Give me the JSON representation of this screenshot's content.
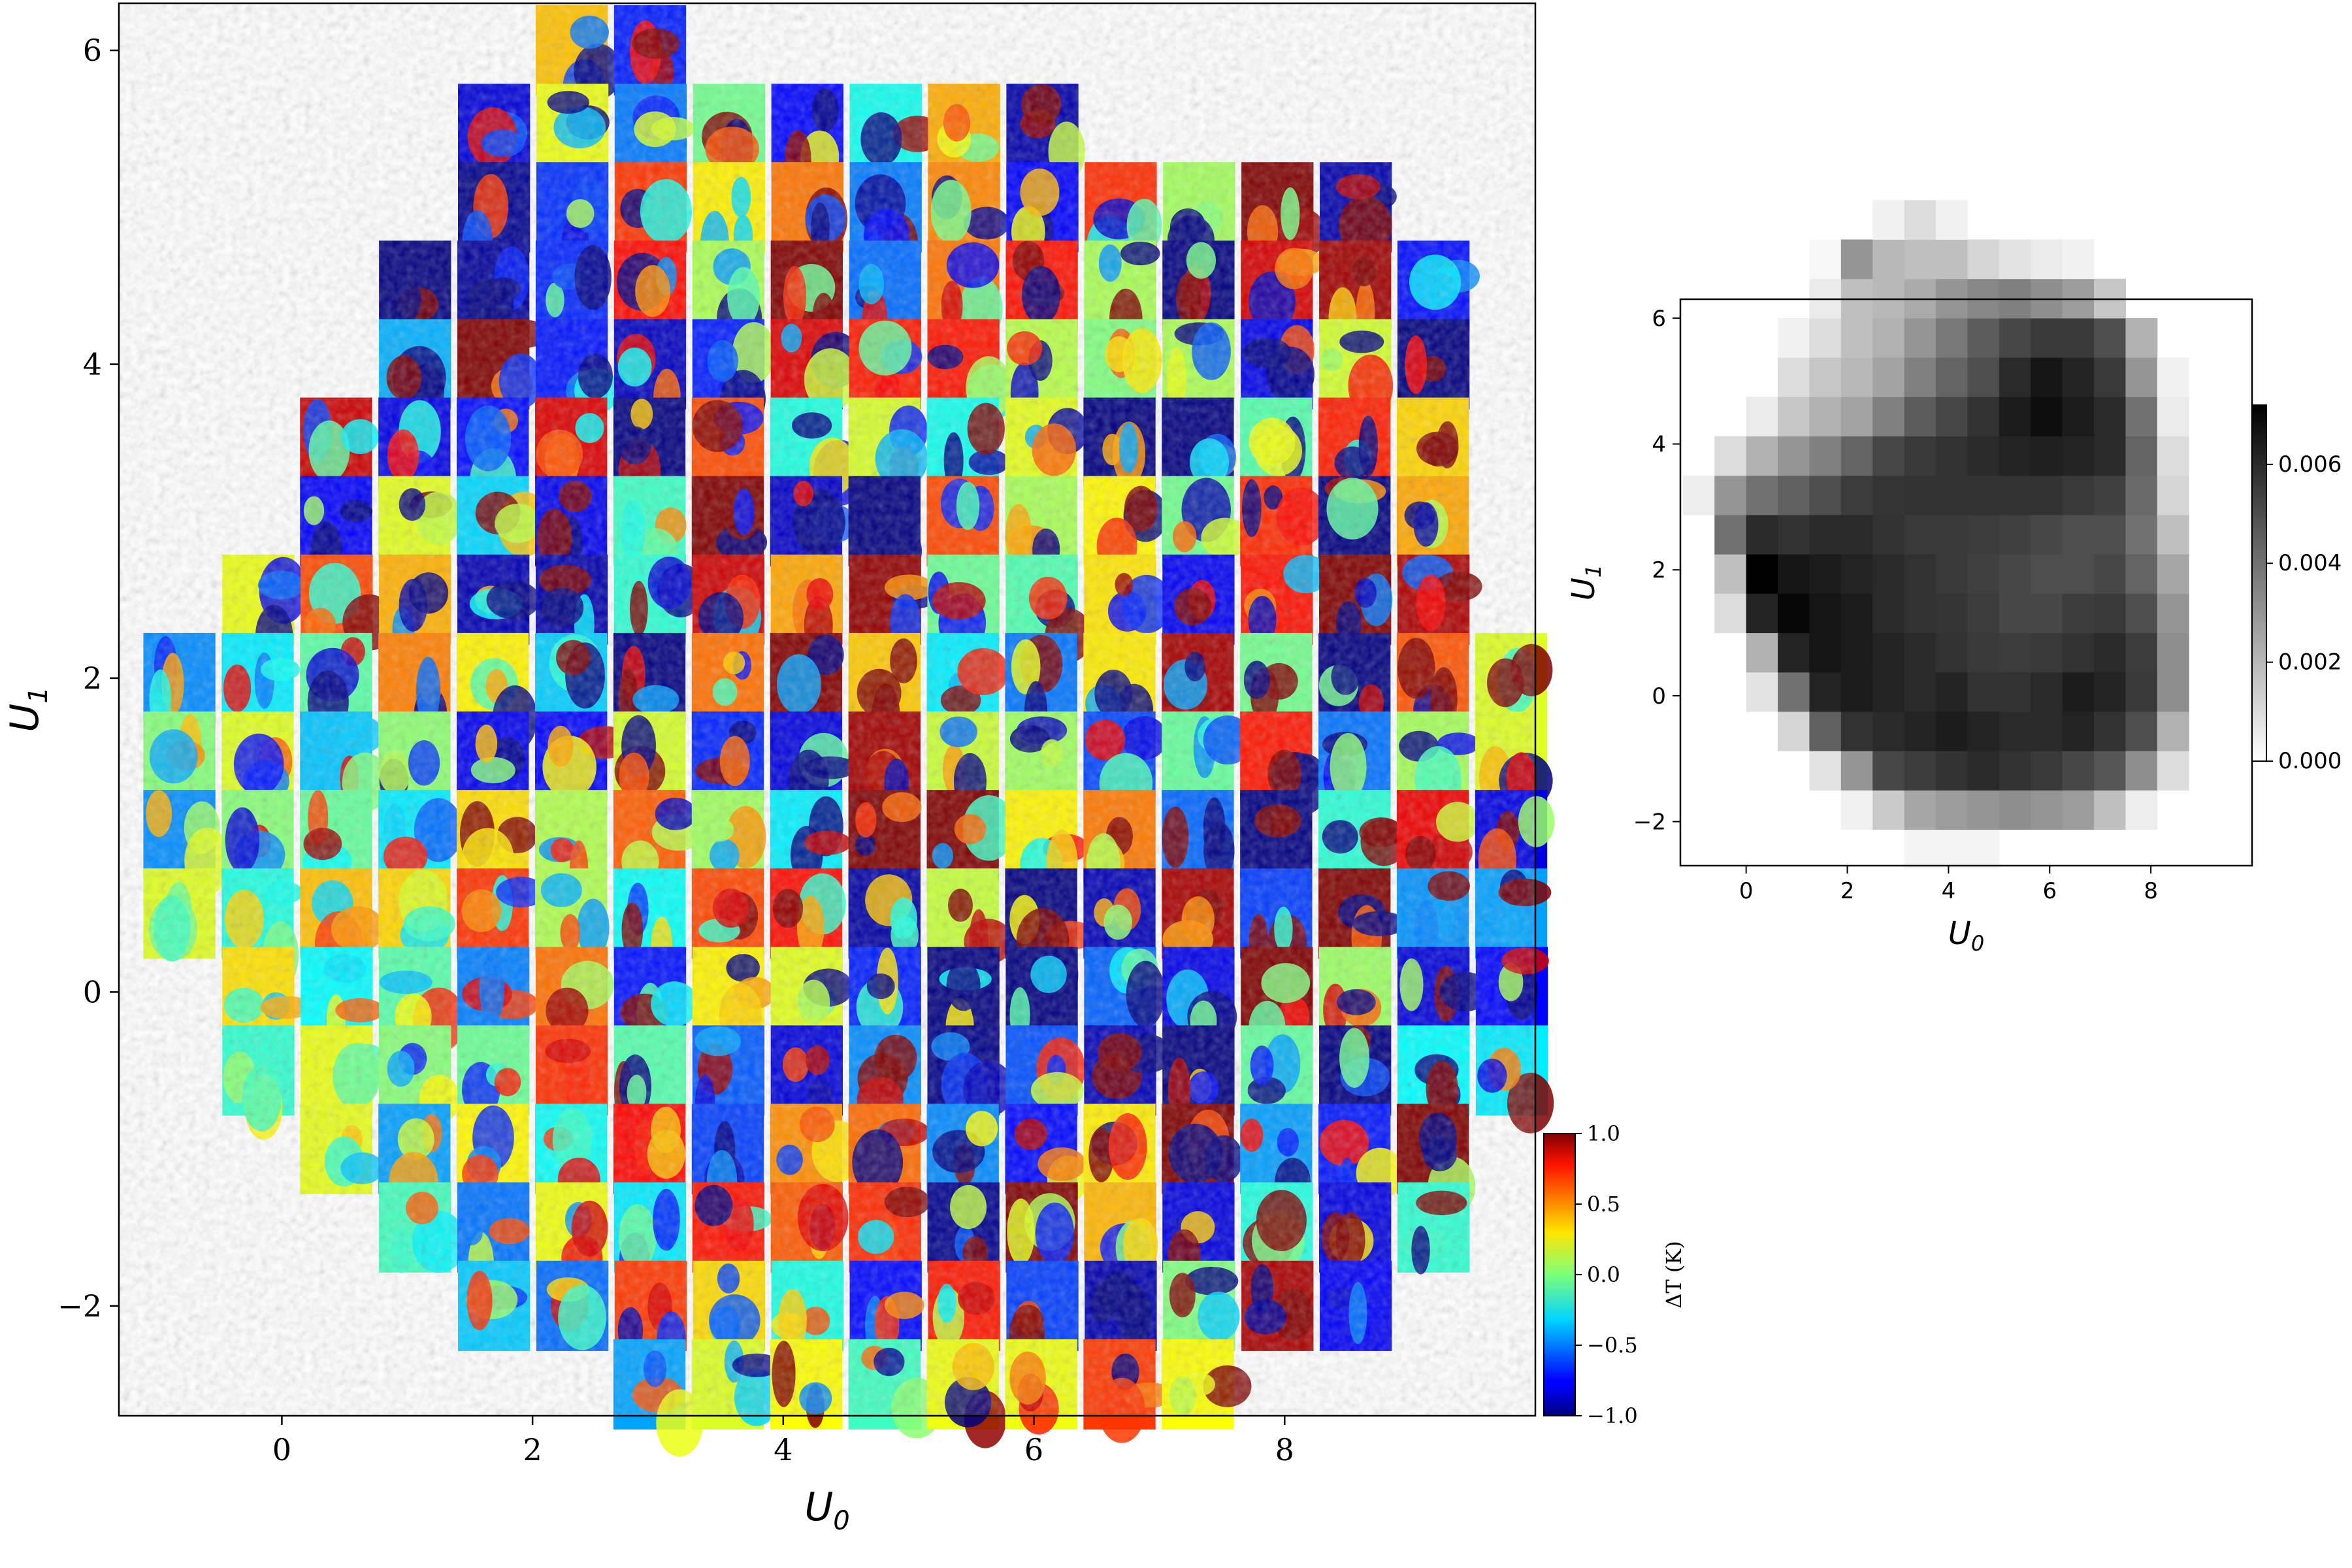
{
  "chart_data": [
    {
      "type": "heatmap",
      "description_visible": "grid of small temperature-anomaly patches",
      "xlabel": "U",
      "xlabel_sub": "0",
      "ylabel": "U",
      "ylabel_sub": "1",
      "xlim": [
        -1.3,
        10.0
      ],
      "ylim": [
        -2.7,
        6.3
      ],
      "xticks": [
        0,
        2,
        4,
        6,
        8
      ],
      "xtick_labels": [
        "0",
        "2",
        "4",
        "6",
        "8"
      ],
      "yticks": [
        -2,
        0,
        2,
        4,
        6
      ],
      "ytick_labels": [
        "−2",
        "0",
        "2",
        "4",
        "6"
      ],
      "colormap": "jet",
      "colorbar": {
        "label": "ΔT (K)",
        "range": [
          -1.0,
          1.0
        ],
        "ticks": [
          -1.0,
          -0.5,
          0.0,
          0.5,
          1.0
        ],
        "tick_labels": [
          "−1.0",
          "−0.5",
          "0.0",
          "0.5",
          "1.0"
        ]
      },
      "rows": [
        {
          "u1": 6.0,
          "u0_from": 2.0,
          "u0_to": 3.25
        },
        {
          "u1": 5.5,
          "u0_from": 1.38,
          "u0_to": 6.25
        },
        {
          "u1": 5.0,
          "u0_from": 1.38,
          "u0_to": 8.75
        },
        {
          "u1": 4.5,
          "u0_from": 0.75,
          "u0_to": 9.38
        },
        {
          "u1": 4.0,
          "u0_from": 0.75,
          "u0_to": 9.38
        },
        {
          "u1": 3.5,
          "u0_from": 0.12,
          "u0_to": 9.38
        },
        {
          "u1": 3.0,
          "u0_from": 0.12,
          "u0_to": 9.38
        },
        {
          "u1": 2.5,
          "u0_from": -0.5,
          "u0_to": 9.38
        },
        {
          "u1": 2.0,
          "u0_from": -1.13,
          "u0_to": 10.0
        },
        {
          "u1": 1.5,
          "u0_from": -1.13,
          "u0_to": 10.0
        },
        {
          "u1": 1.0,
          "u0_from": -1.13,
          "u0_to": 10.0
        },
        {
          "u1": 0.5,
          "u0_from": -1.13,
          "u0_to": 10.0
        },
        {
          "u1": 0.0,
          "u0_from": -0.5,
          "u0_to": 10.0
        },
        {
          "u1": -0.5,
          "u0_from": -0.5,
          "u0_to": 10.0
        },
        {
          "u1": -1.0,
          "u0_from": 0.12,
          "u0_to": 9.38
        },
        {
          "u1": -1.5,
          "u0_from": 0.75,
          "u0_to": 9.38
        },
        {
          "u1": -2.0,
          "u0_from": 1.38,
          "u0_to": 8.75
        },
        {
          "u1": -2.5,
          "u0_from": 2.62,
          "u0_to": 7.5
        }
      ]
    },
    {
      "type": "heatmap",
      "xlabel": "U",
      "xlabel_sub": "0",
      "ylabel": "U",
      "ylabel_sub": "1",
      "xlim": [
        -1.3,
        10.0
      ],
      "ylim": [
        -2.7,
        6.3
      ],
      "xticks": [
        0,
        2,
        4,
        6,
        8
      ],
      "xtick_labels": [
        "0",
        "2",
        "4",
        "6",
        "8"
      ],
      "yticks": [
        -2,
        0,
        2,
        4,
        6
      ],
      "ytick_labels": [
        "−2",
        "0",
        "2",
        "4",
        "6"
      ],
      "colormap": "gray_r",
      "colorbar": {
        "range": [
          0.0,
          0.0072
        ],
        "ticks": [
          0.0,
          0.002,
          0.004,
          0.006
        ],
        "tick_labels": [
          "0.000",
          "0.002",
          "0.004",
          "0.006"
        ]
      },
      "grid_x0": -1.25,
      "grid_y0": -2.75,
      "cell": 0.625,
      "values": [
        [
          0,
          0,
          0,
          0,
          0,
          0,
          0,
          0.0003,
          0.0003,
          0.0003,
          0,
          0,
          0,
          0,
          0,
          0,
          0,
          0
        ],
        [
          0,
          0,
          0,
          0,
          0,
          0.0004,
          0.0015,
          0.0025,
          0.0028,
          0.003,
          0.0032,
          0.003,
          0.0028,
          0.0018,
          0.0005,
          0,
          0,
          0
        ],
        [
          0,
          0,
          0,
          0,
          0.0008,
          0.003,
          0.0052,
          0.0055,
          0.0058,
          0.006,
          0.0058,
          0.0056,
          0.0052,
          0.0048,
          0.0032,
          0.001,
          0,
          0
        ],
        [
          0,
          0,
          0,
          0.0012,
          0.0045,
          0.0058,
          0.006,
          0.0062,
          0.0064,
          0.0062,
          0.006,
          0.006,
          0.0062,
          0.0058,
          0.005,
          0.0022,
          0,
          0
        ],
        [
          0,
          0,
          0.0008,
          0.004,
          0.0062,
          0.0064,
          0.0062,
          0.006,
          0.0062,
          0.0058,
          0.0058,
          0.006,
          0.0064,
          0.0062,
          0.0056,
          0.0032,
          0,
          0
        ],
        [
          0,
          0,
          0.0022,
          0.0062,
          0.0066,
          0.0064,
          0.0062,
          0.006,
          0.0058,
          0.0056,
          0.0055,
          0.0056,
          0.0058,
          0.006,
          0.0055,
          0.0032,
          0,
          0
        ],
        [
          0,
          0.001,
          0.0062,
          0.007,
          0.0066,
          0.0064,
          0.006,
          0.0058,
          0.0057,
          0.0055,
          0.0052,
          0.0052,
          0.0055,
          0.0056,
          0.005,
          0.003,
          0,
          0
        ],
        [
          0,
          0.0018,
          0.0072,
          0.0066,
          0.0064,
          0.0062,
          0.006,
          0.0058,
          0.0056,
          0.0054,
          0.0052,
          0.005,
          0.005,
          0.0052,
          0.0044,
          0.0025,
          0,
          0
        ],
        [
          0,
          0.004,
          0.006,
          0.0058,
          0.006,
          0.006,
          0.0058,
          0.0056,
          0.0056,
          0.0055,
          0.0054,
          0.0052,
          0.005,
          0.005,
          0.004,
          0.0018,
          0,
          0
        ],
        [
          0.0005,
          0.003,
          0.004,
          0.0045,
          0.005,
          0.0055,
          0.0057,
          0.0058,
          0.0058,
          0.0058,
          0.0058,
          0.0058,
          0.0056,
          0.0054,
          0.0042,
          0.0012,
          0,
          0
        ],
        [
          0,
          0.001,
          0.0022,
          0.003,
          0.0036,
          0.0044,
          0.0052,
          0.0056,
          0.0058,
          0.006,
          0.0062,
          0.0063,
          0.0062,
          0.006,
          0.0044,
          0.001,
          0,
          0
        ],
        [
          0,
          0,
          0.0006,
          0.0016,
          0.0022,
          0.0026,
          0.0036,
          0.0046,
          0.0052,
          0.0058,
          0.0064,
          0.0068,
          0.0064,
          0.006,
          0.004,
          0.0006,
          0,
          0
        ],
        [
          0,
          0,
          0,
          0.001,
          0.0016,
          0.002,
          0.0026,
          0.0036,
          0.0044,
          0.005,
          0.006,
          0.0066,
          0.0062,
          0.0056,
          0.003,
          0.0004,
          0,
          0
        ],
        [
          0,
          0,
          0,
          0.0004,
          0.001,
          0.0018,
          0.0022,
          0.003,
          0.0038,
          0.0046,
          0.0052,
          0.0056,
          0.0056,
          0.005,
          0.0022,
          0,
          0,
          0
        ],
        [
          0,
          0,
          0,
          0,
          0.0006,
          0.0018,
          0.002,
          0.0024,
          0.003,
          0.0034,
          0.0036,
          0.0032,
          0.0028,
          0.0016,
          0,
          0,
          0,
          0
        ],
        [
          0,
          0,
          0,
          0,
          0.0002,
          0.003,
          0.002,
          0.0018,
          0.0018,
          0.0012,
          0.0008,
          0.0006,
          0.0004,
          0,
          0,
          0,
          0,
          0
        ],
        [
          0,
          0,
          0,
          0,
          0,
          0,
          0.0004,
          0.001,
          0.0004,
          0,
          0,
          0,
          0,
          0,
          0,
          0,
          0,
          0
        ]
      ]
    }
  ]
}
